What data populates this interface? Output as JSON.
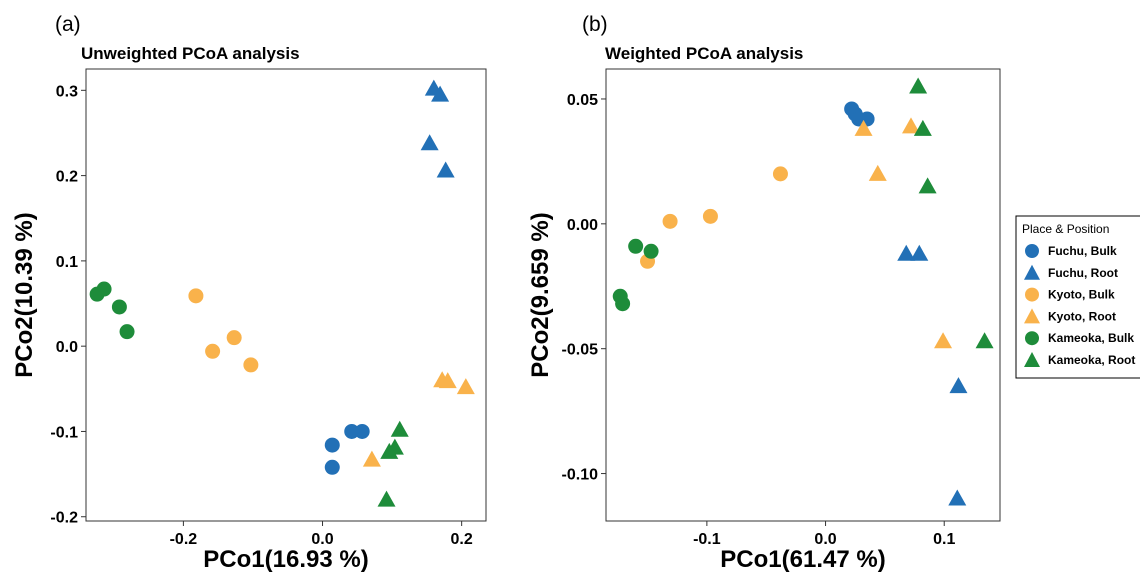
{
  "legend": {
    "title": "Place & Position",
    "entries": [
      {
        "label": "Fuchu, Bulk",
        "color": "#2270B6",
        "shape": "circle"
      },
      {
        "label": "Fuchu, Root",
        "color": "#2270B6",
        "shape": "triangle"
      },
      {
        "label": "Kyoto, Bulk",
        "color": "#F9B24B",
        "shape": "circle"
      },
      {
        "label": "Kyoto, Root",
        "color": "#F9B24B",
        "shape": "triangle"
      },
      {
        "label": "Kameoka, Bulk",
        "color": "#1E8C3A",
        "shape": "circle"
      },
      {
        "label": "Kameoka, Root",
        "color": "#1E8C3A",
        "shape": "triangle"
      }
    ]
  },
  "chart_data": [
    {
      "type": "scatter",
      "tag": "(a)",
      "title": "Unweighted PCoA analysis",
      "xlabel": "PCo1(16.93 %)",
      "ylabel": "PCo2(10.39 %)",
      "xlim": [
        -0.34,
        0.235
      ],
      "ylim": [
        -0.205,
        0.325
      ],
      "xticks": [
        -0.2,
        0.0,
        0.2
      ],
      "xtick_labels": [
        "-0.2",
        "0.0",
        "0.2"
      ],
      "yticks": [
        -0.2,
        -0.1,
        0.0,
        0.1,
        0.2,
        0.3
      ],
      "ytick_labels": [
        "-0.2",
        "-0.1",
        "0.0",
        "0.1",
        "0.2",
        "0.3"
      ],
      "series": [
        {
          "name": "Fuchu, Bulk",
          "points": [
            [
              0.014,
              -0.116
            ],
            [
              0.014,
              -0.142
            ],
            [
              0.042,
              -0.1
            ],
            [
              0.057,
              -0.1
            ]
          ]
        },
        {
          "name": "Fuchu, Root",
          "points": [
            [
              0.16,
              0.302
            ],
            [
              0.169,
              0.295
            ],
            [
              0.154,
              0.238
            ],
            [
              0.177,
              0.206
            ]
          ]
        },
        {
          "name": "Kyoto, Bulk",
          "points": [
            [
              -0.182,
              0.059
            ],
            [
              -0.158,
              -0.006
            ],
            [
              -0.127,
              0.01
            ],
            [
              -0.103,
              -0.022
            ]
          ]
        },
        {
          "name": "Kyoto, Root",
          "points": [
            [
              0.172,
              -0.04
            ],
            [
              0.18,
              -0.041
            ],
            [
              0.206,
              -0.048
            ],
            [
              0.071,
              -0.133
            ]
          ]
        },
        {
          "name": "Kameoka, Bulk",
          "points": [
            [
              -0.324,
              0.061
            ],
            [
              -0.314,
              0.067
            ],
            [
              -0.292,
              0.046
            ],
            [
              -0.281,
              0.017
            ]
          ]
        },
        {
          "name": "Kameoka, Root",
          "points": [
            [
              0.111,
              -0.098
            ],
            [
              0.104,
              -0.119
            ],
            [
              0.096,
              -0.124
            ],
            [
              0.092,
              -0.18
            ]
          ]
        }
      ]
    },
    {
      "type": "scatter",
      "tag": "(b)",
      "title": "Weighted PCoA analysis",
      "xlabel": "PCo1(61.47 %)",
      "ylabel": "PCo2(9.659 %)",
      "xlim": [
        -0.185,
        0.147
      ],
      "ylim": [
        -0.119,
        0.062
      ],
      "xticks": [
        -0.1,
        0.0,
        0.1
      ],
      "xtick_labels": [
        "-0.1",
        "0.0",
        "0.1"
      ],
      "yticks": [
        -0.1,
        -0.05,
        0.0,
        0.05
      ],
      "ytick_labels": [
        "-0.10",
        "-0.05",
        "0.00",
        "0.05"
      ],
      "series": [
        {
          "name": "Fuchu, Bulk",
          "points": [
            [
              0.022,
              0.046
            ],
            [
              0.025,
              0.044
            ],
            [
              0.028,
              0.042
            ],
            [
              0.035,
              0.042
            ]
          ]
        },
        {
          "name": "Fuchu, Root",
          "points": [
            [
              0.068,
              -0.012
            ],
            [
              0.079,
              -0.012
            ],
            [
              0.112,
              -0.065
            ],
            [
              0.111,
              -0.11
            ]
          ]
        },
        {
          "name": "Kyoto, Bulk",
          "points": [
            [
              -0.038,
              0.02
            ],
            [
              -0.097,
              0.003
            ],
            [
              -0.131,
              0.001
            ],
            [
              -0.15,
              -0.015
            ]
          ]
        },
        {
          "name": "Kyoto, Root",
          "points": [
            [
              0.032,
              0.038
            ],
            [
              0.072,
              0.039
            ],
            [
              0.044,
              0.02
            ],
            [
              0.099,
              -0.047
            ]
          ]
        },
        {
          "name": "Kameoka, Bulk",
          "points": [
            [
              -0.16,
              -0.009
            ],
            [
              -0.147,
              -0.011
            ],
            [
              -0.173,
              -0.029
            ],
            [
              -0.171,
              -0.032
            ]
          ]
        },
        {
          "name": "Kameoka, Root",
          "points": [
            [
              0.078,
              0.055
            ],
            [
              0.082,
              0.038
            ],
            [
              0.086,
              0.015
            ],
            [
              0.134,
              -0.047
            ]
          ]
        }
      ]
    }
  ]
}
